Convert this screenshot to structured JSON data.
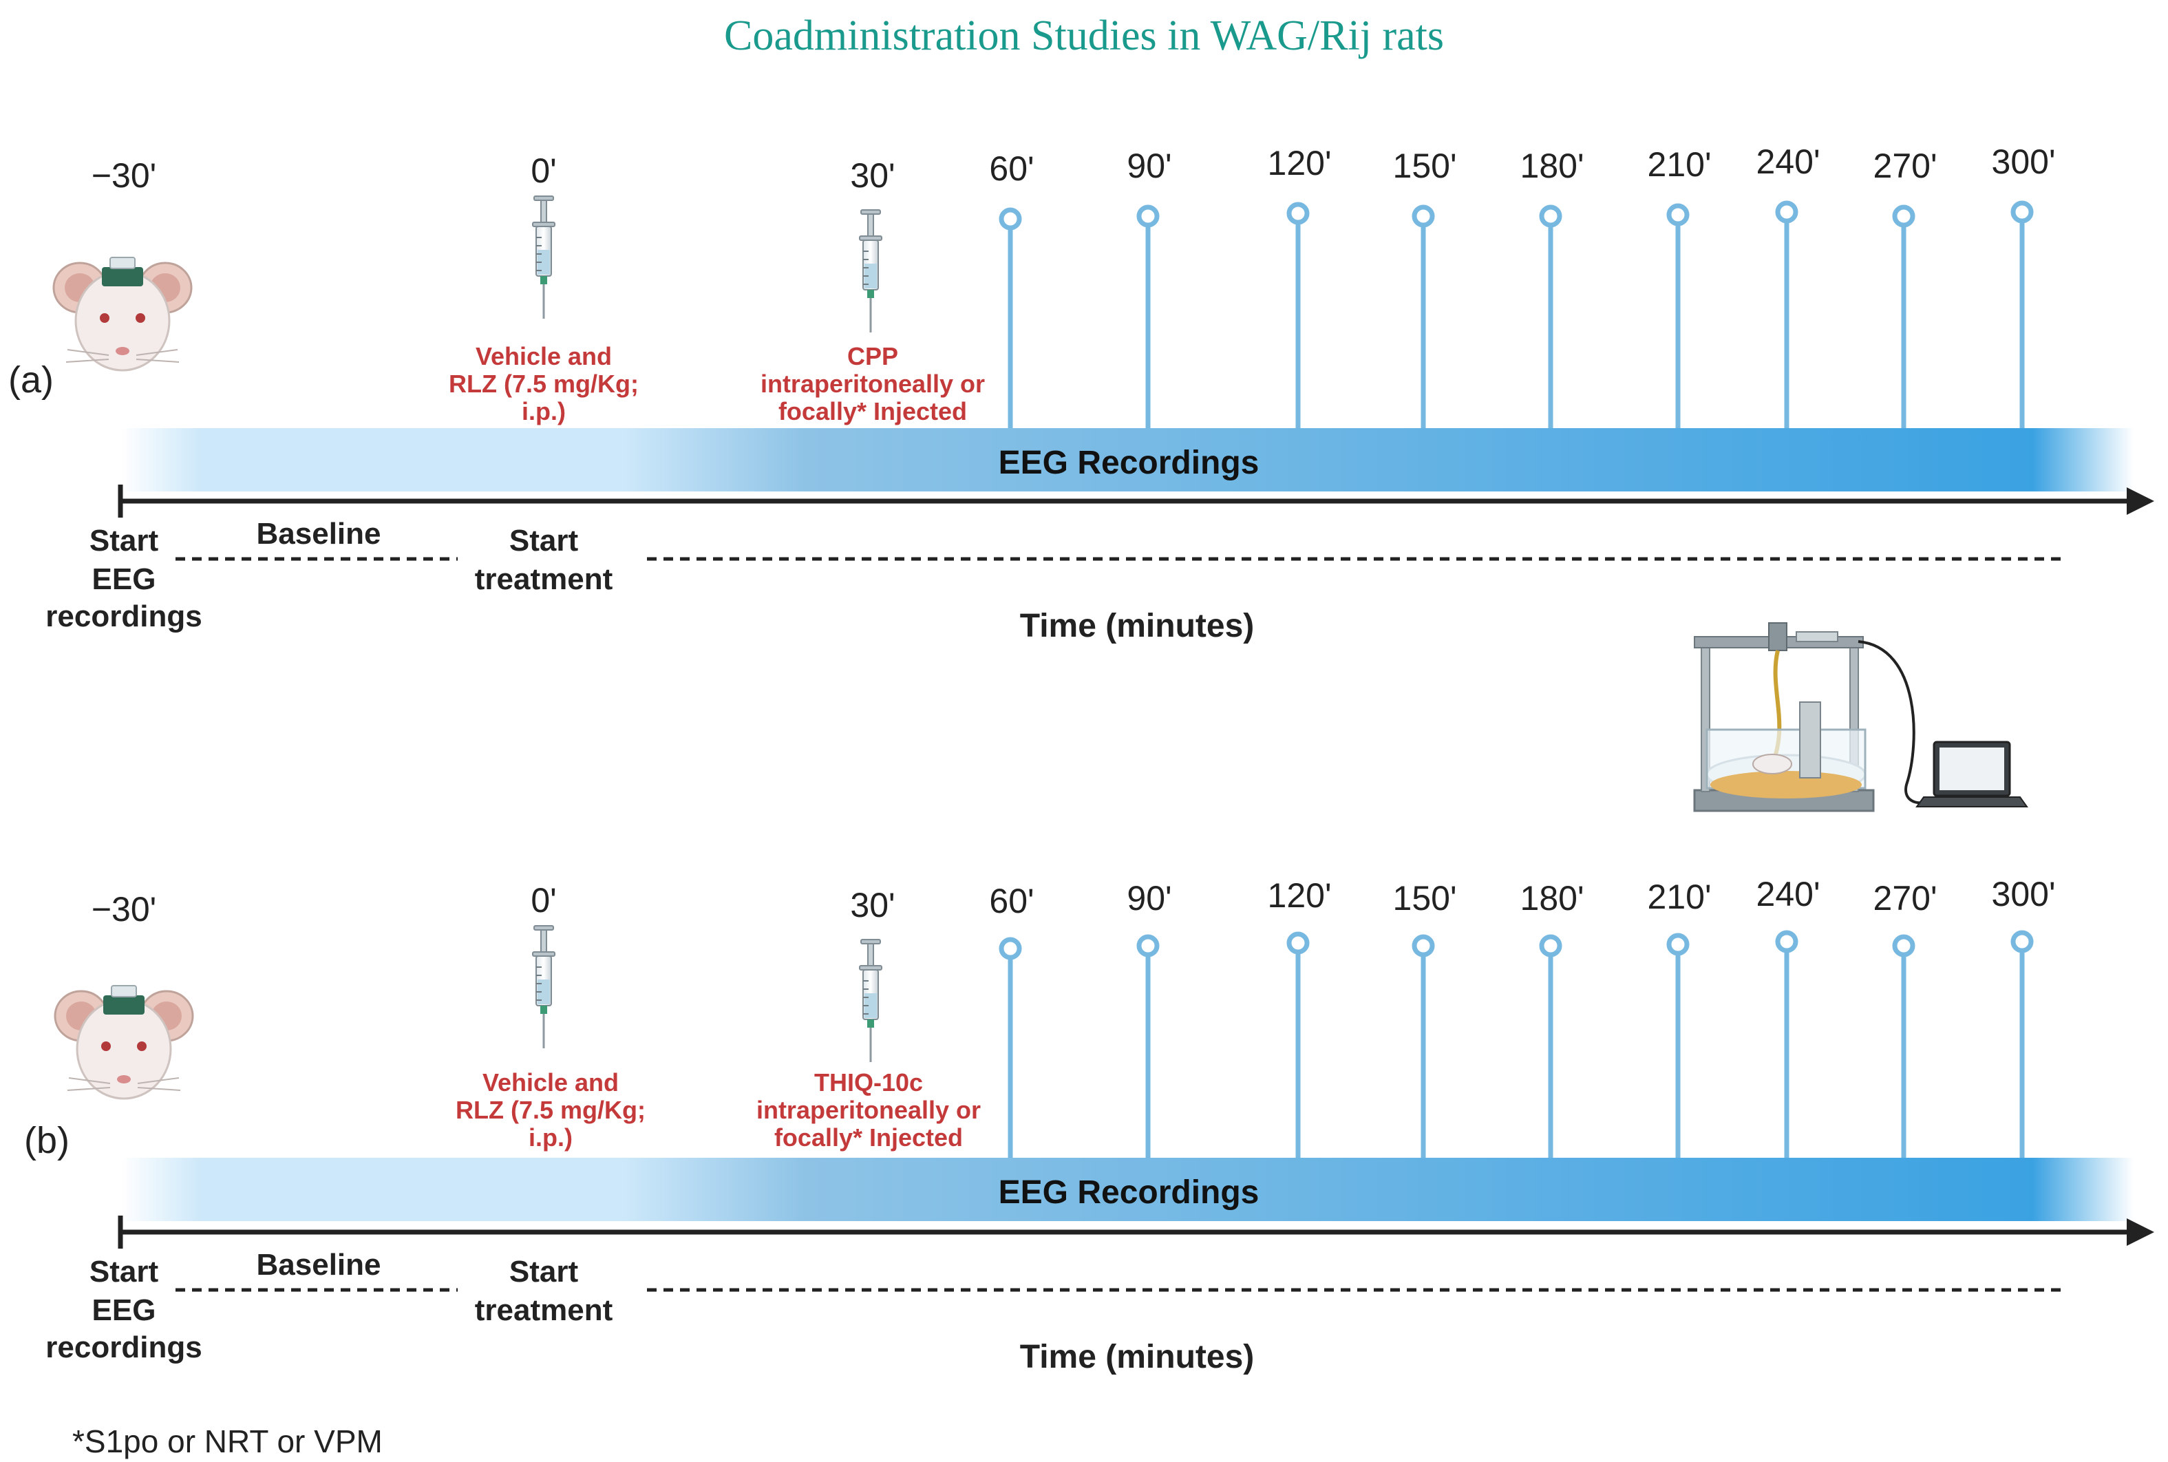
{
  "title": "Coadministration Studies in WAG/Rij rats",
  "colors": {
    "title": "#1a9a8c",
    "injection": "#c43a3a",
    "pin": "#76b8e0",
    "axis": "#222222",
    "band_light": "#cfe8f8",
    "band_dark": "#3aa0e0"
  },
  "panels": [
    {
      "label": "(a)",
      "start_time": "−30'",
      "injection_1": {
        "time": "0'",
        "lines": [
          "Vehicle and",
          "RLZ (7.5 mg/Kg;",
          "i.p.)"
        ]
      },
      "injection_2": {
        "time": "30'",
        "lines": [
          "CPP",
          "intraperitoneally or",
          "focally* Injected"
        ]
      },
      "recording_times": [
        "60'",
        "90'",
        "120'",
        "150'",
        "180'",
        "210'",
        "240'",
        "270'",
        "300'"
      ],
      "band_label": "EEG Recordings",
      "start_eeg_lines": [
        "Start",
        "EEG",
        "recordings"
      ],
      "baseline": "Baseline",
      "start_treatment_lines": [
        "Start",
        "treatment"
      ],
      "axis_label": "Time (minutes)"
    },
    {
      "label": "(b)",
      "start_time": "−30'",
      "injection_1": {
        "time": "0'",
        "lines": [
          "Vehicle and",
          "RLZ (7.5 mg/Kg;",
          "i.p.)"
        ]
      },
      "injection_2": {
        "time": "30'",
        "lines": [
          "THIQ-10c",
          "intraperitoneally or",
          "focally* Injected"
        ]
      },
      "recording_times": [
        "60'",
        "90'",
        "120'",
        "150'",
        "180'",
        "210'",
        "240'",
        "270'",
        "300'"
      ],
      "band_label": "EEG Recordings",
      "start_eeg_lines": [
        "Start",
        "EEG",
        "recordings"
      ],
      "baseline": "Baseline",
      "start_treatment_lines": [
        "Start",
        "treatment"
      ],
      "axis_label": "Time (minutes)"
    }
  ],
  "footnote": "*S1po or NRT or VPM",
  "icons": [
    "rat-icon",
    "syringe-icon",
    "eeg-setup-icon",
    "laptop-icon"
  ]
}
